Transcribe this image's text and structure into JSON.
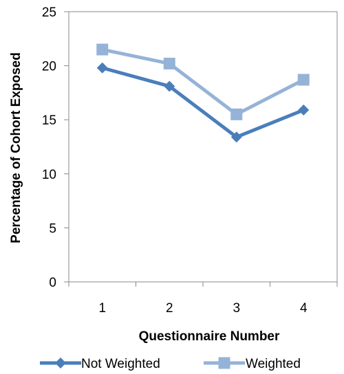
{
  "chart_data": {
    "type": "line",
    "x": [
      1,
      2,
      3,
      4
    ],
    "xticks": [
      "1",
      "2",
      "3",
      "4"
    ],
    "yticks": [
      "0",
      "5",
      "10",
      "15",
      "20",
      "25"
    ],
    "ylim": [
      0,
      25
    ],
    "xlabel": "Questionnaire Number",
    "ylabel": "Percentage of Cohort Exposed",
    "grid": false,
    "legend_position": "bottom",
    "series": [
      {
        "name": "Not Weighted",
        "values": [
          19.8,
          18.1,
          13.4,
          15.9
        ],
        "color": "#4a7ebb",
        "marker": "diamond"
      },
      {
        "name": "Weighted",
        "values": [
          21.5,
          20.2,
          15.5,
          18.7
        ],
        "color": "#95b3d7",
        "marker": "square"
      }
    ]
  }
}
